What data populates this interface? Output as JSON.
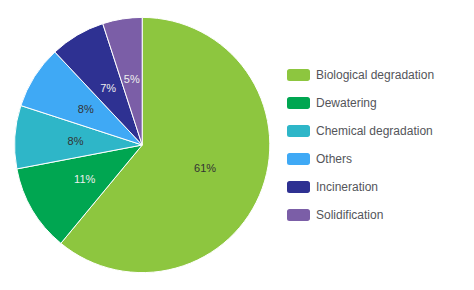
{
  "chart_data": {
    "type": "pie",
    "categories": [
      "Biological degradation",
      "Dewatering",
      "Chemical degradation",
      "Others",
      "Incineration",
      "Solidification"
    ],
    "values": [
      61,
      11,
      8,
      8,
      7,
      5
    ],
    "value_labels": [
      "61%",
      "11%",
      "8%",
      "8%",
      "7%",
      "5%"
    ],
    "colors": [
      "#8dc63f",
      "#00a651",
      "#2eb6c8",
      "#3fa9f5",
      "#2e3192",
      "#7b5ea7"
    ],
    "data_labels": true,
    "legend": "right"
  }
}
